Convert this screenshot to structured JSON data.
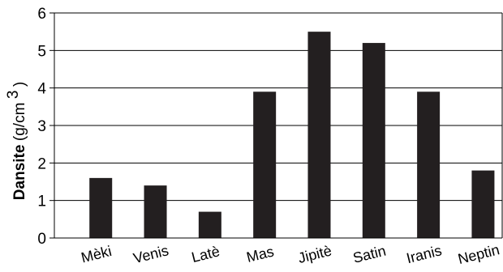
{
  "chart_data": {
    "type": "bar",
    "title": "",
    "categories": [
      "Mèki",
      "Venis",
      "Latè",
      "Mas",
      "Jipitè",
      "Satin",
      "Iranis",
      "Neptin"
    ],
    "values": [
      1.6,
      1.4,
      0.7,
      3.9,
      5.5,
      5.2,
      3.9,
      1.8
    ],
    "ylabel": {
      "bold": "Dansite",
      "unit_prefix": "(g/cm",
      "unit_exponent": "3",
      "unit_suffix": ")"
    },
    "xlabel": "",
    "ylim": [
      0,
      6
    ],
    "yticks": [
      "0",
      "1",
      "2",
      "3",
      "4",
      "5",
      "6"
    ],
    "grid": "horizontal",
    "legend": "none",
    "colors": {
      "bar": "#231f20",
      "axis": "#000000",
      "grid": "#000000"
    }
  }
}
